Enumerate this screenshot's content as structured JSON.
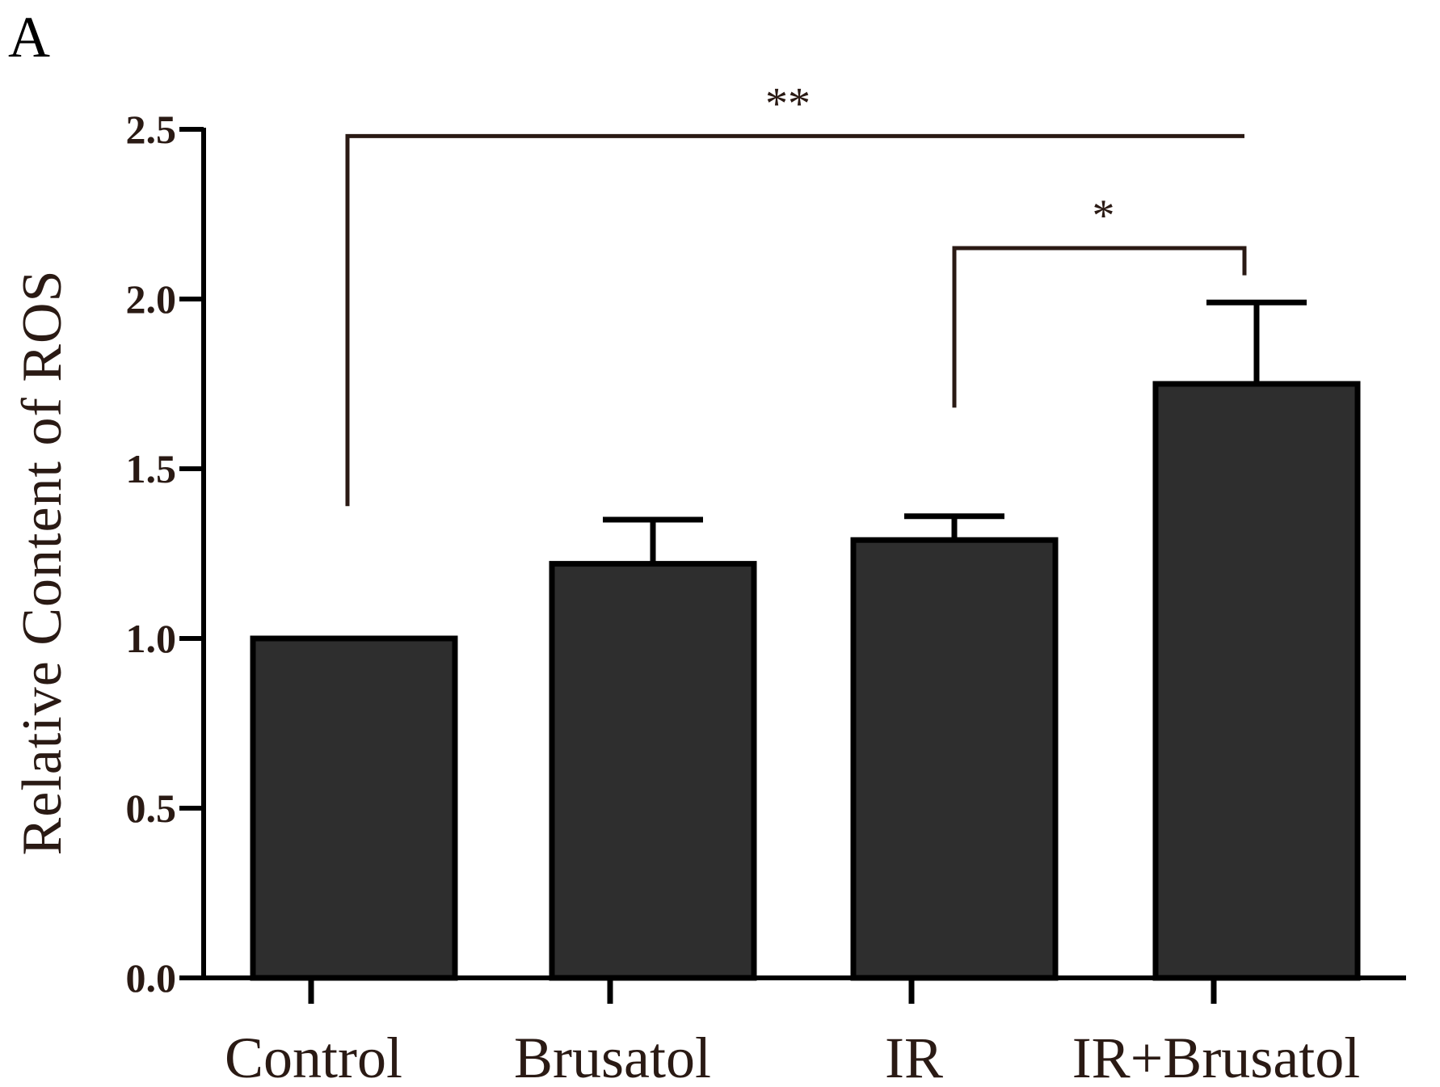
{
  "chart_data": {
    "type": "bar",
    "panel_label": "A",
    "categories": [
      "Control",
      "Brusatol",
      "IR",
      "IR+Brusatol"
    ],
    "values": [
      1.0,
      1.22,
      1.29,
      1.75
    ],
    "error_upper": [
      1.0,
      1.35,
      1.36,
      1.99
    ],
    "ylabel": "Relative Content of ROS",
    "xlabel": "",
    "ylim": [
      0,
      2.5
    ],
    "yticks": [
      "0.0",
      "0.5",
      "1.0",
      "1.5",
      "2.0",
      "2.5"
    ],
    "grid": false,
    "legend": "none",
    "significance": [
      {
        "from": "Control",
        "to": "IR+Brusatol",
        "label": "**",
        "level": 2.48
      },
      {
        "from": "IR",
        "to": "IR+Brusatol",
        "label": "*",
        "level": 2.15
      }
    ],
    "colors": {
      "bar_fill": "#2e2e2e",
      "bar_edge": "#000000",
      "axis": "#000000",
      "bracket": "#2a1a14",
      "text": "#2a1a14"
    }
  }
}
